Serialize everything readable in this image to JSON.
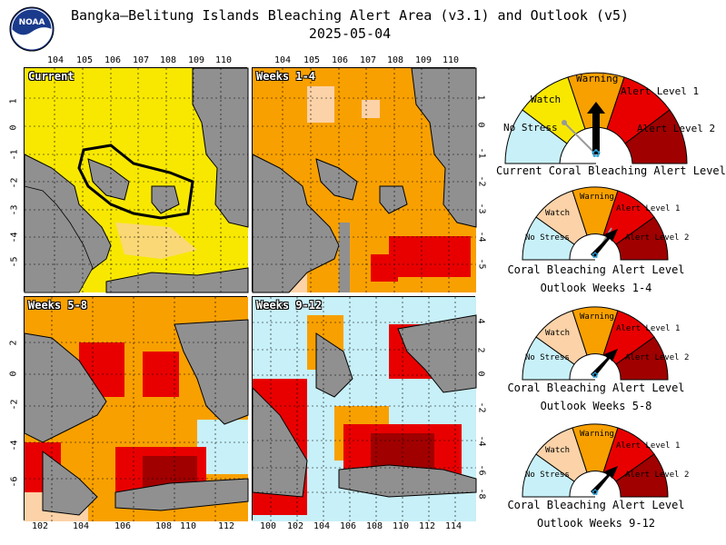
{
  "header": {
    "title": "Bangka–Belitung Islands Bleaching Alert Area (v3.1) and Outlook (v5)",
    "date": "2025-05-04",
    "logo_text": "NOAA"
  },
  "panels": [
    {
      "label": "Current"
    },
    {
      "label": "Weeks 1-4"
    },
    {
      "label": "Weeks 5-8"
    },
    {
      "label": "Weeks 9-12"
    }
  ],
  "axes": {
    "top_lon_ticks": [
      "104",
      "105",
      "106",
      "107",
      "108",
      "109",
      "110"
    ],
    "top_right_lon_ticks": [
      "104",
      "105",
      "106",
      "107",
      "108",
      "109",
      "110"
    ],
    "left_lat_ticks": [
      "1",
      "0",
      "-1",
      "-2",
      "-3",
      "-4",
      "-5"
    ],
    "mid_lat_ticks": [
      "1",
      "0",
      "-1",
      "-2",
      "-3",
      "-4",
      "-5"
    ],
    "bottom_left_lon_ticks": [
      "102",
      "104",
      "106",
      "108",
      "110",
      "112"
    ],
    "bottom_right_lon_ticks": [
      "100",
      "102",
      "104",
      "106",
      "108",
      "110",
      "112",
      "114"
    ],
    "lower_left_lat_ticks": [
      "2",
      "0",
      "-2",
      "-4",
      "-6"
    ],
    "lower_mid_lat_ticks": [
      "4",
      "2",
      "0",
      "-2",
      "-4",
      "-6",
      "-8"
    ]
  },
  "gauges": [
    {
      "labels": {
        "no_stress": "No Stress",
        "watch": "Watch",
        "warning": "Warning",
        "alert1": "Alert Level 1",
        "alert2": "Alert Level 2"
      },
      "caption": "Current Coral Bleaching Alert Level",
      "caption2": ""
    },
    {
      "labels": {
        "no_stress": "No Stress",
        "watch": "Watch",
        "warning": "Warning",
        "alert1": "Alert Level 1",
        "alert2": "Alert Level 2"
      },
      "caption": "Coral Bleaching Alert Level",
      "caption2": "Outlook Weeks 1-4"
    },
    {
      "labels": {
        "no_stress": "No Stress",
        "watch": "Watch",
        "warning": "Warning",
        "alert1": "Alert Level 1",
        "alert2": "Alert Level 2"
      },
      "caption": "Coral Bleaching Alert Level",
      "caption2": "Outlook Weeks 5-8"
    },
    {
      "labels": {
        "no_stress": "No Stress",
        "watch": "Watch",
        "warning": "Warning",
        "alert1": "Alert Level 1",
        "alert2": "Alert Level 2"
      },
      "caption": "Coral Bleaching Alert Level",
      "caption2": "Outlook Weeks 9-12"
    }
  ],
  "colors": {
    "no_stress": "#c8f0f8",
    "watch": "#f8e800",
    "watch_outlook": "#fcd2a8",
    "warning": "#f8a000",
    "alert1": "#e80000",
    "alert2": "#a00000",
    "land": "#909090"
  }
}
